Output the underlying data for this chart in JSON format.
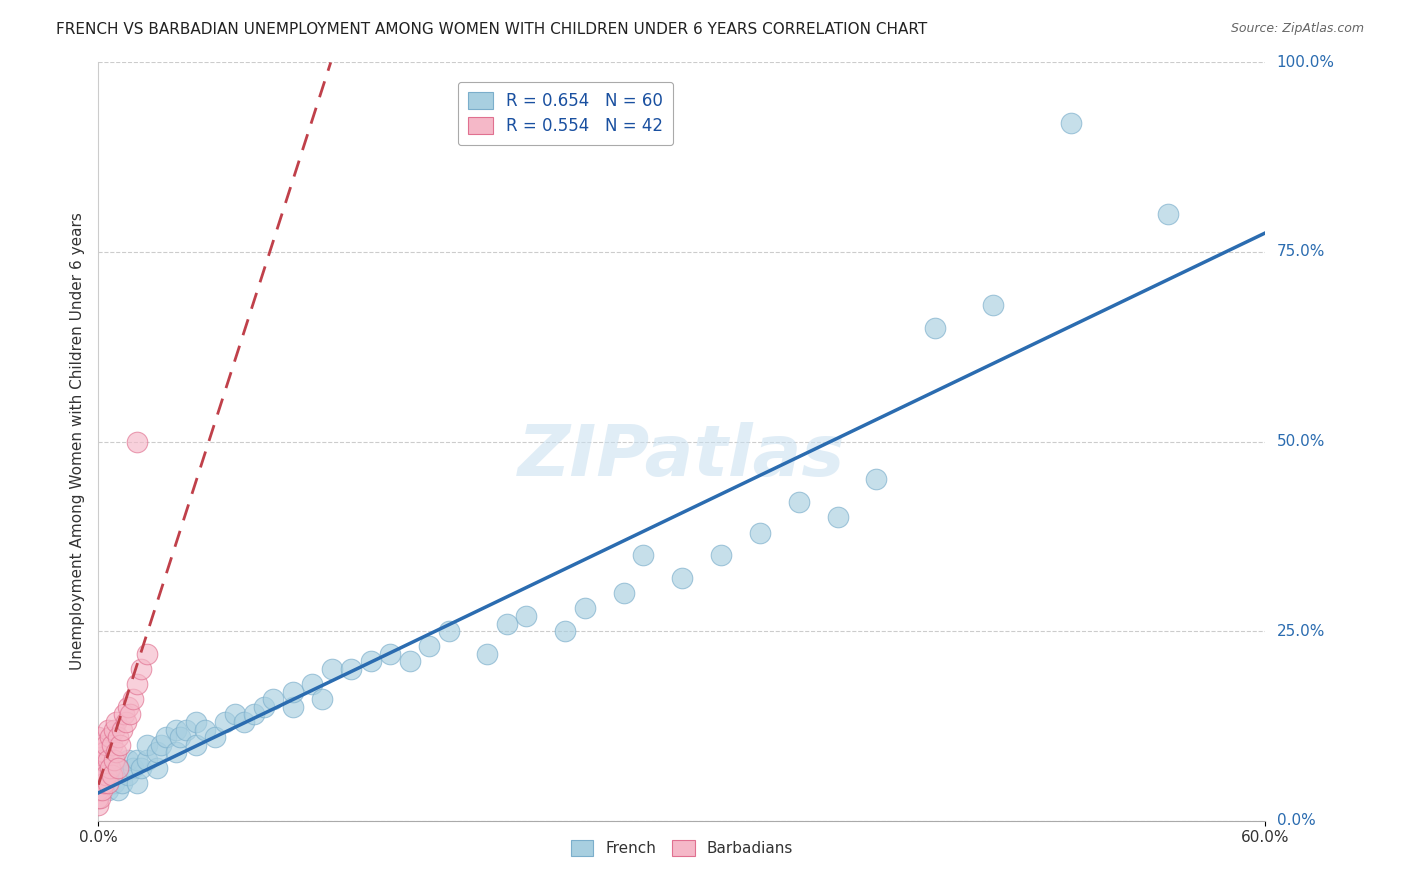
{
  "title": "FRENCH VS BARBADIAN UNEMPLOYMENT AMONG WOMEN WITH CHILDREN UNDER 6 YEARS CORRELATION CHART",
  "source": "Source: ZipAtlas.com",
  "ylabel_label": "Unemployment Among Women with Children Under 6 years",
  "french_R": 0.654,
  "french_N": 60,
  "barbadian_R": 0.554,
  "barbadian_N": 42,
  "french_color": "#a8cfe0",
  "french_edge_color": "#7baecb",
  "french_line_color": "#2b6cb0",
  "barbadian_color": "#f5b8c8",
  "barbadian_edge_color": "#e07090",
  "barbadian_line_color": "#c0404a",
  "watermark_text": "ZIPatlas",
  "watermark_color": "#c8dff0",
  "xmin": 0.0,
  "xmax": 0.6,
  "ymin": 0.0,
  "ymax": 1.0,
  "french_x": [
    0.005,
    0.005,
    0.008,
    0.01,
    0.01,
    0.012,
    0.015,
    0.015,
    0.018,
    0.02,
    0.02,
    0.022,
    0.025,
    0.025,
    0.03,
    0.03,
    0.032,
    0.035,
    0.04,
    0.04,
    0.042,
    0.045,
    0.05,
    0.05,
    0.055,
    0.06,
    0.065,
    0.07,
    0.075,
    0.08,
    0.085,
    0.09,
    0.1,
    0.1,
    0.11,
    0.115,
    0.12,
    0.13,
    0.14,
    0.15,
    0.16,
    0.17,
    0.18,
    0.2,
    0.21,
    0.22,
    0.24,
    0.25,
    0.27,
    0.28,
    0.3,
    0.32,
    0.34,
    0.36,
    0.38,
    0.4,
    0.43,
    0.46,
    0.5,
    0.55
  ],
  "french_y": [
    0.04,
    0.06,
    0.05,
    0.04,
    0.07,
    0.05,
    0.06,
    0.08,
    0.07,
    0.05,
    0.08,
    0.07,
    0.08,
    0.1,
    0.07,
    0.09,
    0.1,
    0.11,
    0.09,
    0.12,
    0.11,
    0.12,
    0.1,
    0.13,
    0.12,
    0.11,
    0.13,
    0.14,
    0.13,
    0.14,
    0.15,
    0.16,
    0.15,
    0.17,
    0.18,
    0.16,
    0.2,
    0.2,
    0.21,
    0.22,
    0.21,
    0.23,
    0.25,
    0.22,
    0.26,
    0.27,
    0.25,
    0.28,
    0.3,
    0.35,
    0.32,
    0.35,
    0.38,
    0.42,
    0.4,
    0.45,
    0.65,
    0.68,
    0.92,
    0.8
  ],
  "barbadian_x": [
    0.0,
    0.0,
    0.0,
    0.0,
    0.0,
    0.0,
    0.0,
    0.0,
    0.0,
    0.0,
    0.001,
    0.001,
    0.002,
    0.002,
    0.003,
    0.003,
    0.004,
    0.004,
    0.005,
    0.005,
    0.005,
    0.006,
    0.006,
    0.007,
    0.007,
    0.008,
    0.008,
    0.009,
    0.009,
    0.01,
    0.01,
    0.011,
    0.012,
    0.013,
    0.014,
    0.015,
    0.016,
    0.018,
    0.02,
    0.022,
    0.025,
    0.02
  ],
  "barbadian_y": [
    0.02,
    0.03,
    0.04,
    0.05,
    0.06,
    0.07,
    0.08,
    0.09,
    0.1,
    0.11,
    0.03,
    0.06,
    0.04,
    0.08,
    0.05,
    0.09,
    0.06,
    0.1,
    0.05,
    0.08,
    0.12,
    0.07,
    0.11,
    0.06,
    0.1,
    0.08,
    0.12,
    0.09,
    0.13,
    0.07,
    0.11,
    0.1,
    0.12,
    0.14,
    0.13,
    0.15,
    0.14,
    0.16,
    0.18,
    0.2,
    0.22,
    0.5
  ],
  "yticks": [
    0.0,
    0.25,
    0.5,
    0.75,
    1.0
  ],
  "ytick_labels": [
    "0.0%",
    "25.0%",
    "50.0%",
    "75.0%",
    "100.0%"
  ],
  "xtick_left": "0.0%",
  "xtick_right": "60.0%"
}
